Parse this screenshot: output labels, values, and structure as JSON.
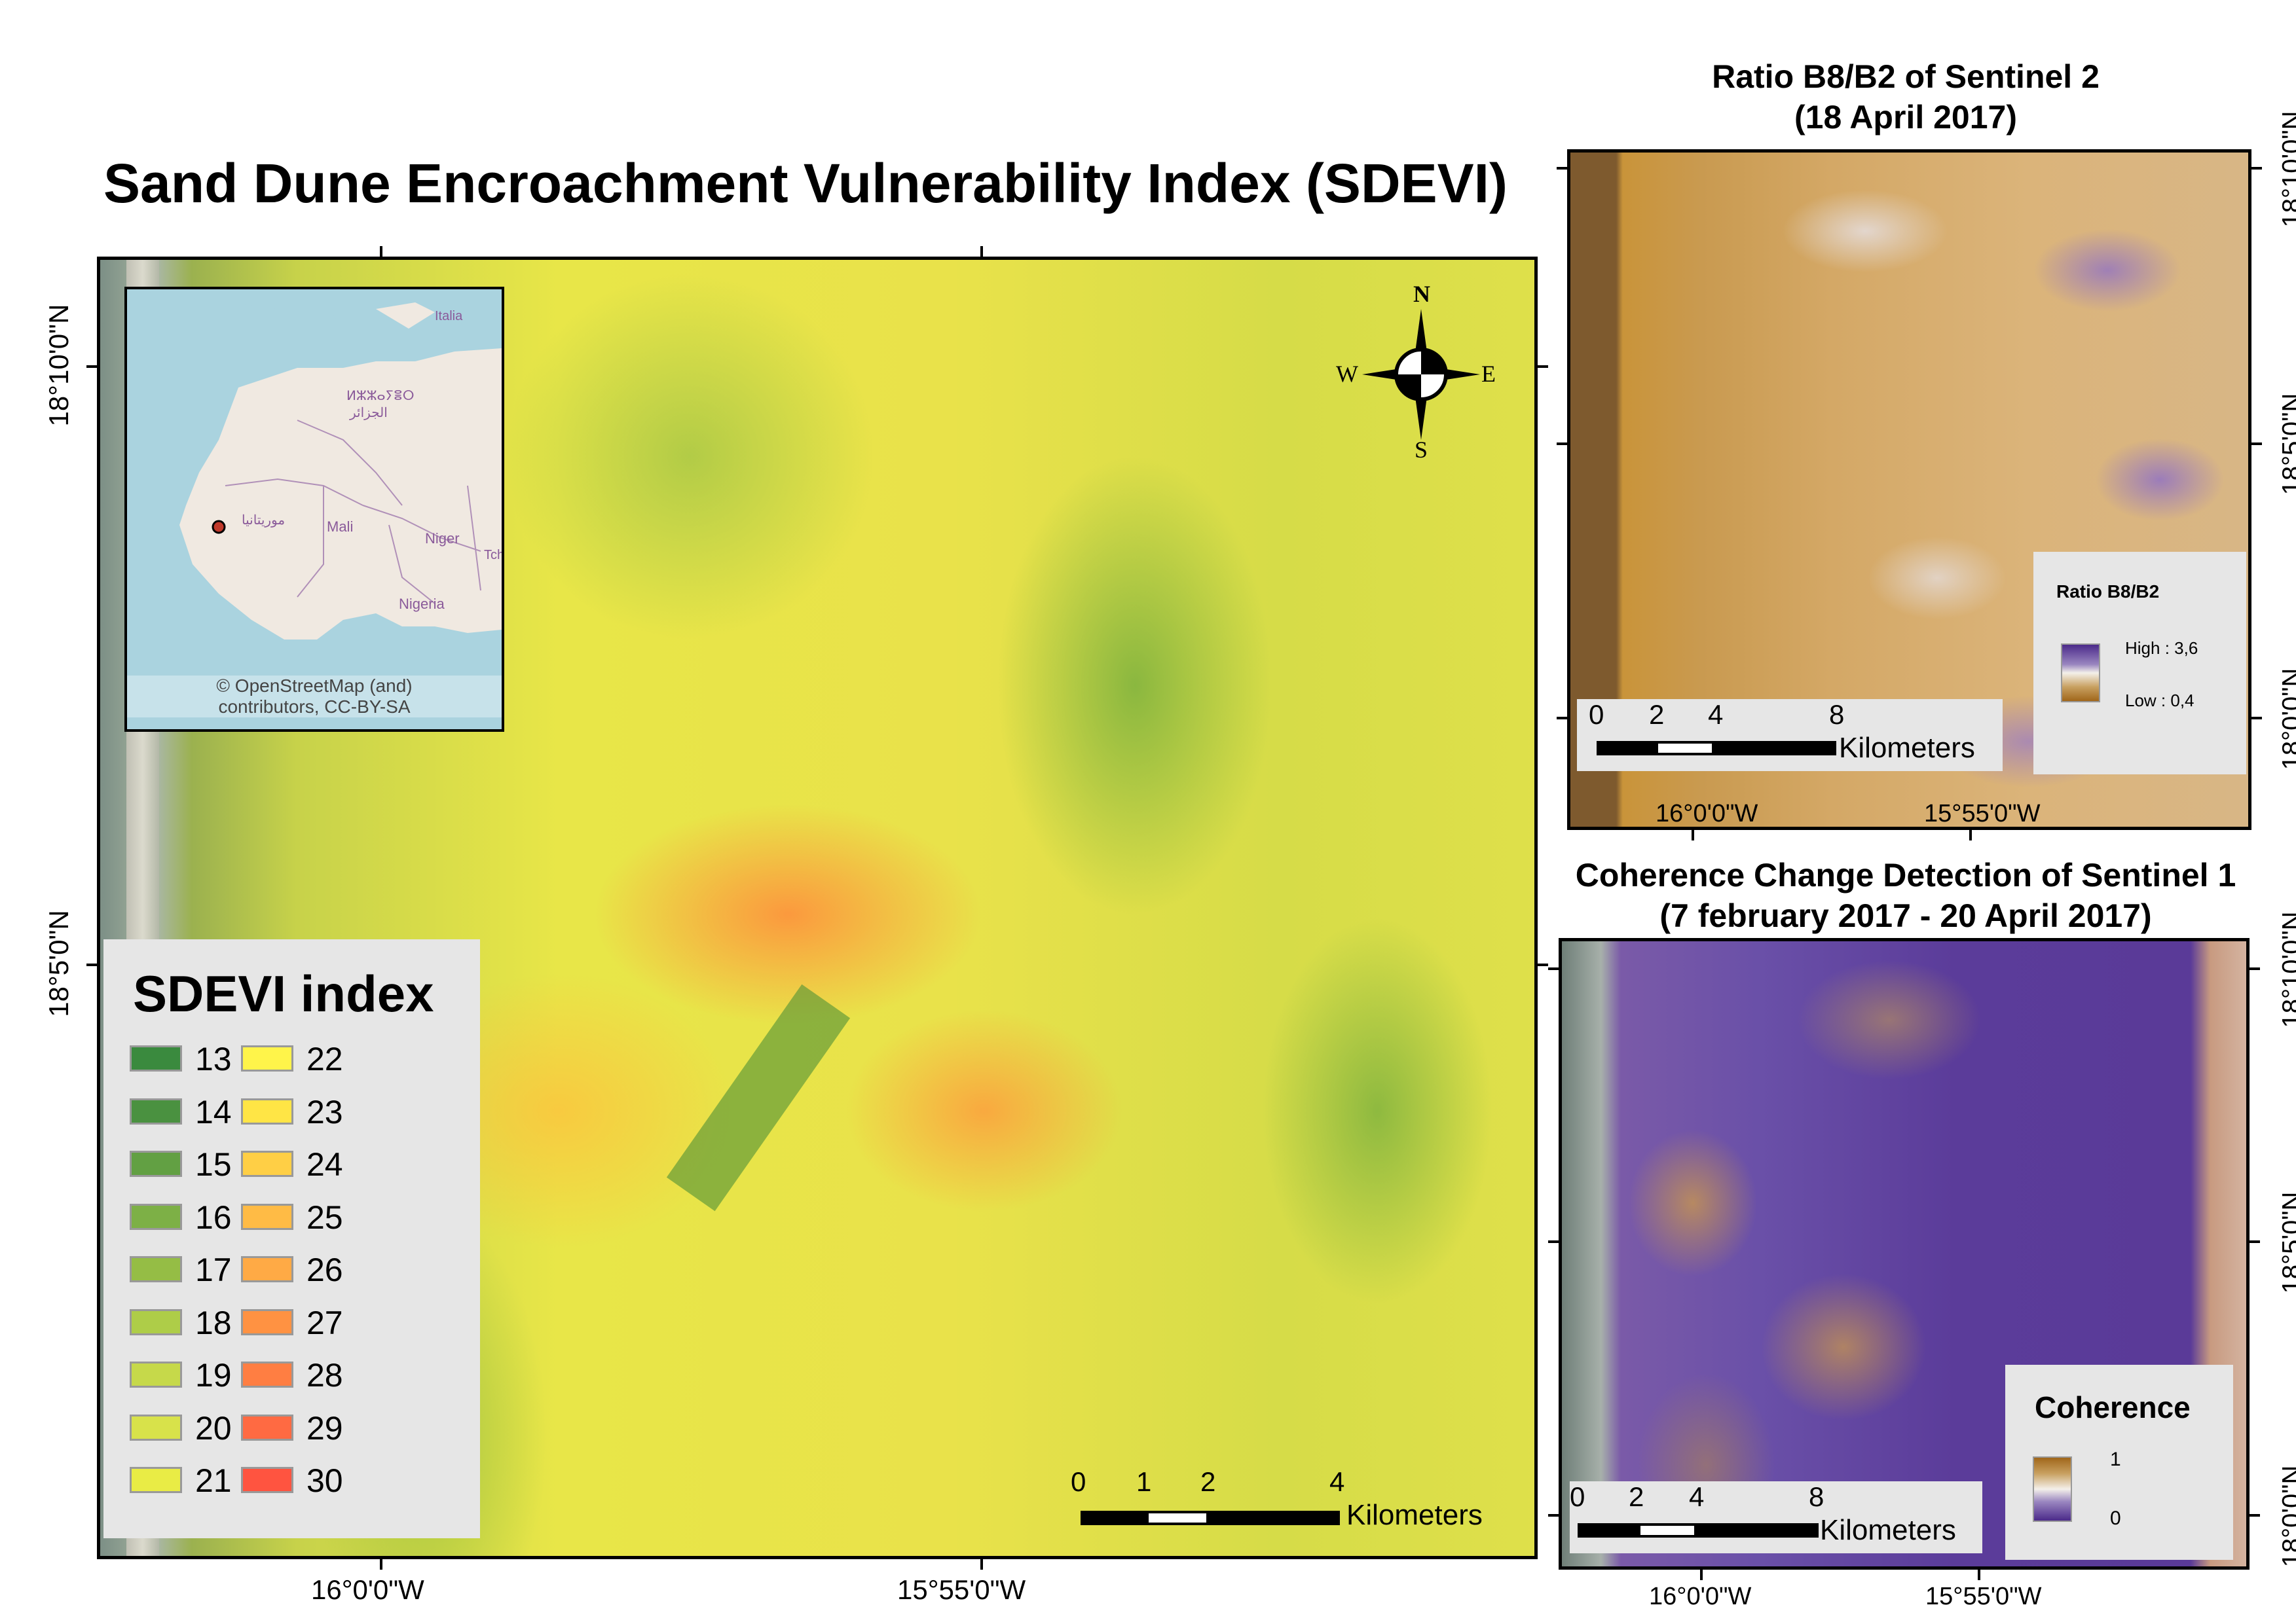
{
  "main_map": {
    "title": "Sand Dune Encroachment Vulnerability Index (SDEVI)",
    "x_labels": [
      "16°0'0\"W",
      "15°55'0\"W"
    ],
    "y_labels": [
      "18°10'0\"N",
      "18°5'0\"N"
    ],
    "north_arrow": {
      "n": "N",
      "s": "S",
      "e": "E",
      "w": "W"
    },
    "scale_bar": {
      "ticks": [
        "0",
        "1",
        "2",
        "4"
      ],
      "unit": "Kilometers"
    },
    "legend": {
      "title": "SDEVI index",
      "items": [
        {
          "label": "13",
          "color": "#3a8a3e"
        },
        {
          "label": "14",
          "color": "#4a9140"
        },
        {
          "label": "15",
          "color": "#62a043"
        },
        {
          "label": "16",
          "color": "#7db046"
        },
        {
          "label": "17",
          "color": "#95bd45"
        },
        {
          "label": "18",
          "color": "#aecd48"
        },
        {
          "label": "19",
          "color": "#c6d94a"
        },
        {
          "label": "20",
          "color": "#d8e24a"
        },
        {
          "label": "21",
          "color": "#e9ec45"
        },
        {
          "label": "22",
          "color": "#fff44a"
        },
        {
          "label": "23",
          "color": "#ffe545"
        },
        {
          "label": "24",
          "color": "#ffcf45"
        },
        {
          "label": "25",
          "color": "#ffbb45"
        },
        {
          "label": "26",
          "color": "#ffaa45"
        },
        {
          "label": "27",
          "color": "#ff9242"
        },
        {
          "label": "28",
          "color": "#ff7e42"
        },
        {
          "label": "29",
          "color": "#ff6a42"
        },
        {
          "label": "30",
          "color": "#ff5440"
        }
      ]
    }
  },
  "inset": {
    "countries": [
      "Italia",
      "Mali",
      "Niger",
      "Nigeria",
      "Tch"
    ],
    "arabic_labels": [
      "ⵍⵣⵣⴰⵢⴻⵔ",
      "الجزائر",
      "موريتانيا"
    ],
    "attribution_line1": "© OpenStreetMap (and)",
    "attribution_line2": "contributors, CC-BY-SA"
  },
  "ratio_map": {
    "title_line1": "Ratio B8/B2 of Sentinel 2",
    "title_line2": "(18 April 2017)",
    "x_labels": [
      "16°0'0\"W",
      "15°55'0\"W"
    ],
    "y_labels": [
      "18°10'0\"N",
      "18°5'0\"N",
      "18°0'0\"N"
    ],
    "scale_bar": {
      "ticks": [
        "0",
        "2",
        "4",
        "8"
      ],
      "unit": "Kilometers"
    },
    "legend": {
      "title": "Ratio B8/B2",
      "high": "High : 3,6",
      "low": "Low : 0,4",
      "color_high": "#4b2a8a",
      "color_low": "#a0661a"
    }
  },
  "coherence_map": {
    "title_line1": "Coherence Change Detection of Sentinel 1",
    "title_line2": "(7 february 2017 - 20 April 2017)",
    "x_labels": [
      "16°0'0\"W",
      "15°55'0\"W"
    ],
    "y_labels": [
      "18°10'0\"N",
      "18°5'0\"N",
      "18°0'0\"N"
    ],
    "scale_bar": {
      "ticks": [
        "0",
        "2",
        "4",
        "8"
      ],
      "unit": "Kilometers"
    },
    "legend": {
      "title": "Coherence",
      "high": "1",
      "low": "0",
      "color_high": "#a0661a",
      "color_low": "#4b2a8a"
    }
  }
}
